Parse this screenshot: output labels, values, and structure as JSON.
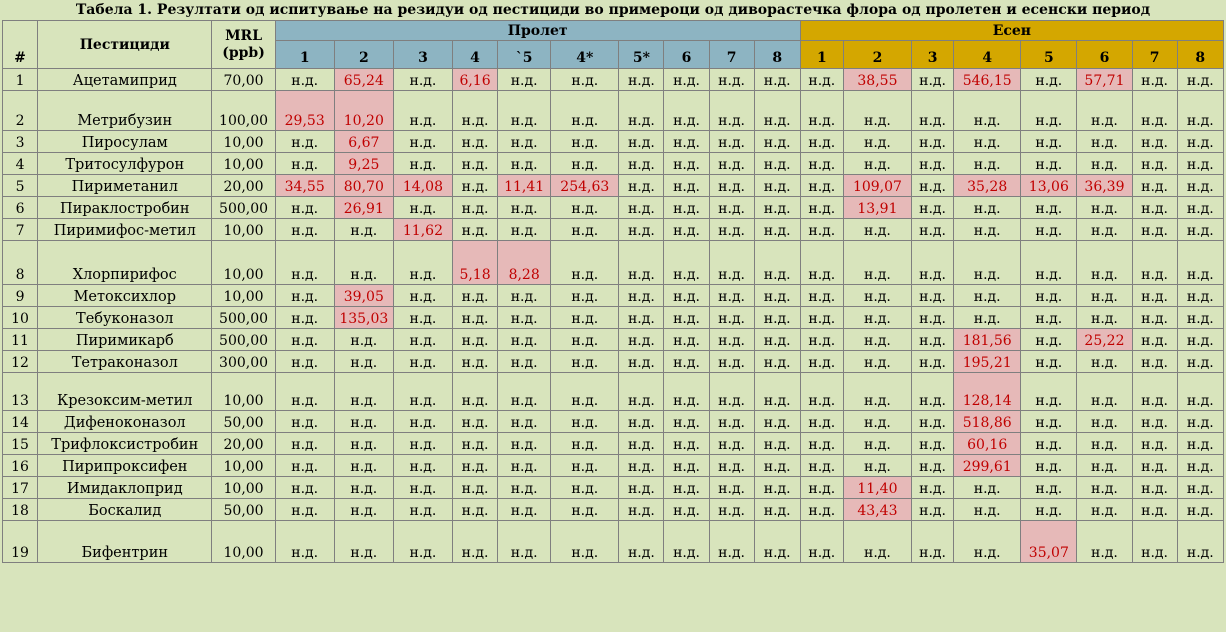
{
  "caption": "Табела 1. Резултати од испитување на резидуи од пестициди во примероци од диворастечка флора од пролетен и есенски период",
  "header": {
    "num": "#",
    "pesticide": "Пестициди",
    "mrl_line1": "MRL",
    "mrl_line2": "(ppb)",
    "spring": "Пролет",
    "autumn": "Есен",
    "spring_cols": [
      "1",
      "2",
      "3",
      "4",
      "`5",
      "4*",
      "5*",
      "6",
      "7",
      "8"
    ],
    "autumn_cols": [
      "1",
      "2",
      "3",
      "4",
      "5",
      "6",
      "7",
      "8"
    ]
  },
  "colors": {
    "background": "#d8e4bc",
    "spring_header": "#8db4c2",
    "autumn_header": "#d4a700",
    "highlight_bg": "#e6b9b8",
    "highlight_text": "#c00000"
  },
  "rows": [
    {
      "n": "1",
      "name": "Ацетамиприд",
      "mrl": "70,00",
      "spring": [
        "н.д.",
        "65,24",
        "н.д.",
        "6,16",
        "н.д.",
        "н.д.",
        "н.д.",
        "н.д.",
        "н.д.",
        "н.д."
      ],
      "autumn": [
        "н.д.",
        "38,55",
        "н.д.",
        "546,15",
        "н.д.",
        "57,71",
        "н.д.",
        "н.д."
      ]
    },
    {
      "n": "2",
      "name": "Метрибузин",
      "mrl": "100,00",
      "spring": [
        "29,53",
        "10,20",
        "н.д.",
        "н.д.",
        "н.д.",
        "н.д.",
        "н.д.",
        "н.д.",
        "н.д.",
        "н.д."
      ],
      "autumn": [
        "н.д.",
        "н.д.",
        "н.д.",
        "н.д.",
        "н.д.",
        "н.д.",
        "н.д.",
        "н.д."
      ]
    },
    {
      "n": "3",
      "name": "Пиросулам",
      "mrl": "10,00",
      "spring": [
        "н.д.",
        "6,67",
        "н.д.",
        "н.д.",
        "н.д.",
        "н.д.",
        "н.д.",
        "н.д.",
        "н.д.",
        "н.д."
      ],
      "autumn": [
        "н.д.",
        "н.д.",
        "н.д.",
        "н.д.",
        "н.д.",
        "н.д.",
        "н.д.",
        "н.д."
      ]
    },
    {
      "n": "4",
      "name": "Тритосулфурон",
      "mrl": "10,00",
      "spring": [
        "н.д.",
        "9,25",
        "н.д.",
        "н.д.",
        "н.д.",
        "н.д.",
        "н.д.",
        "н.д.",
        "н.д.",
        "н.д."
      ],
      "autumn": [
        "н.д.",
        "н.д.",
        "н.д.",
        "н.д.",
        "н.д.",
        "н.д.",
        "н.д.",
        "н.д."
      ]
    },
    {
      "n": "5",
      "name": "Пириметанил",
      "mrl": "20,00",
      "spring": [
        "34,55",
        "80,70",
        "14,08",
        "н.д.",
        "11,41",
        "254,63",
        "н.д.",
        "н.д.",
        "н.д.",
        "н.д."
      ],
      "autumn": [
        "н.д.",
        "109,07",
        "н.д.",
        "35,28",
        "13,06",
        "36,39",
        "н.д.",
        "н.д."
      ]
    },
    {
      "n": "6",
      "name": "Пираклостробин",
      "mrl": "500,00",
      "spring": [
        "н.д.",
        "26,91",
        "н.д.",
        "н.д.",
        "н.д.",
        "н.д.",
        "н.д.",
        "н.д.",
        "н.д.",
        "н.д."
      ],
      "autumn": [
        "н.д.",
        "13,91",
        "н.д.",
        "н.д.",
        "н.д.",
        "н.д.",
        "н.д.",
        "н.д."
      ]
    },
    {
      "n": "7",
      "name": "Пиримифос-метил",
      "mrl": "10,00",
      "spring": [
        "н.д.",
        "н.д.",
        "11,62",
        "н.д.",
        "н.д.",
        "н.д.",
        "н.д.",
        "н.д.",
        "н.д.",
        "н.д."
      ],
      "autumn": [
        "н.д.",
        "н.д.",
        "н.д.",
        "н.д.",
        "н.д.",
        "н.д.",
        "н.д.",
        "н.д."
      ]
    },
    {
      "n": "8",
      "name": "Хлорпирифос",
      "mrl": "10,00",
      "spring": [
        "н.д.",
        "н.д.",
        "н.д.",
        "5,18",
        "8,28",
        "н.д.",
        "н.д.",
        "н.д.",
        "н.д.",
        "н.д."
      ],
      "autumn": [
        "н.д.",
        "н.д.",
        "н.д.",
        "н.д.",
        "н.д.",
        "н.д.",
        "н.д.",
        "н.д."
      ]
    },
    {
      "n": "9",
      "name": "Метоксихлор",
      "mrl": "10,00",
      "spring": [
        "н.д.",
        "39,05",
        "н.д.",
        "н.д.",
        "н.д.",
        "н.д.",
        "н.д.",
        "н.д.",
        "н.д.",
        "н.д."
      ],
      "autumn": [
        "н.д.",
        "н.д.",
        "н.д.",
        "н.д.",
        "н.д.",
        "н.д.",
        "н.д.",
        "н.д."
      ]
    },
    {
      "n": "10",
      "name": "Тебуконазол",
      "mrl": "500,00",
      "spring": [
        "н.д.",
        "135,03",
        "н.д.",
        "н.д.",
        "н.д.",
        "н.д.",
        "н.д.",
        "н.д.",
        "н.д.",
        "н.д."
      ],
      "autumn": [
        "н.д.",
        "н.д.",
        "н.д.",
        "н.д.",
        "н.д.",
        "н.д.",
        "н.д.",
        "н.д."
      ]
    },
    {
      "n": "11",
      "name": "Пиримикарб",
      "mrl": "500,00",
      "spring": [
        "н.д.",
        "н.д.",
        "н.д.",
        "н.д.",
        "н.д.",
        "н.д.",
        "н.д.",
        "н.д.",
        "н.д.",
        "н.д."
      ],
      "autumn": [
        "н.д.",
        "н.д.",
        "н.д.",
        "181,56",
        "н.д.",
        "25,22",
        "н.д.",
        "н.д."
      ]
    },
    {
      "n": "12",
      "name": "Тетраконазол",
      "mrl": "300,00",
      "spring": [
        "н.д.",
        "н.д.",
        "н.д.",
        "н.д.",
        "н.д.",
        "н.д.",
        "н.д.",
        "н.д.",
        "н.д.",
        "н.д."
      ],
      "autumn": [
        "н.д.",
        "н.д.",
        "н.д.",
        "195,21",
        "н.д.",
        "н.д.",
        "н.д.",
        "н.д."
      ]
    },
    {
      "n": "13",
      "name": "Крезоксим-метил",
      "mrl": "10,00",
      "spring": [
        "н.д.",
        "н.д.",
        "н.д.",
        "н.д.",
        "н.д.",
        "н.д.",
        "н.д.",
        "н.д.",
        "н.д.",
        "н.д."
      ],
      "autumn": [
        "н.д.",
        "н.д.",
        "н.д.",
        "128,14",
        "н.д.",
        "н.д.",
        "н.д.",
        "н.д."
      ]
    },
    {
      "n": "14",
      "name": "Дифеноконазол",
      "mrl": "50,00",
      "spring": [
        "н.д.",
        "н.д.",
        "н.д.",
        "н.д.",
        "н.д.",
        "н.д.",
        "н.д.",
        "н.д.",
        "н.д.",
        "н.д."
      ],
      "autumn": [
        "н.д.",
        "н.д.",
        "н.д.",
        "518,86",
        "н.д.",
        "н.д.",
        "н.д.",
        "н.д."
      ]
    },
    {
      "n": "15",
      "name": "Трифлоксистробин",
      "mrl": "20,00",
      "spring": [
        "н.д.",
        "н.д.",
        "н.д.",
        "н.д.",
        "н.д.",
        "н.д.",
        "н.д.",
        "н.д.",
        "н.д.",
        "н.д."
      ],
      "autumn": [
        "н.д.",
        "н.д.",
        "н.д.",
        "60,16",
        "н.д.",
        "н.д.",
        "н.д.",
        "н.д."
      ]
    },
    {
      "n": "16",
      "name": "Пирипроксифен",
      "mrl": "10,00",
      "spring": [
        "н.д.",
        "н.д.",
        "н.д.",
        "н.д.",
        "н.д.",
        "н.д.",
        "н.д.",
        "н.д.",
        "н.д.",
        "н.д."
      ],
      "autumn": [
        "н.д.",
        "н.д.",
        "н.д.",
        "299,61",
        "н.д.",
        "н.д.",
        "н.д.",
        "н.д."
      ]
    },
    {
      "n": "17",
      "name": "Имидаклоприд",
      "mrl": "10,00",
      "spring": [
        "н.д.",
        "н.д.",
        "н.д.",
        "н.д.",
        "н.д.",
        "н.д.",
        "н.д.",
        "н.д.",
        "н.д.",
        "н.д."
      ],
      "autumn": [
        "н.д.",
        "11,40",
        "н.д.",
        "н.д.",
        "н.д.",
        "н.д.",
        "н.д.",
        "н.д."
      ]
    },
    {
      "n": "18",
      "name": "Боскалид",
      "mrl": "50,00",
      "spring": [
        "н.д.",
        "н.д.",
        "н.д.",
        "н.д.",
        "н.д.",
        "н.д.",
        "н.д.",
        "н.д.",
        "н.д.",
        "н.д."
      ],
      "autumn": [
        "н.д.",
        "43,43",
        "н.д.",
        "н.д.",
        "н.д.",
        "н.д.",
        "н.д.",
        "н.д."
      ]
    },
    {
      "n": "19",
      "name": "Бифентрин",
      "mrl": "10,00",
      "spring": [
        "н.д.",
        "н.д.",
        "н.д.",
        "н.д.",
        "н.д.",
        "н.д.",
        "н.д.",
        "н.д.",
        "н.д.",
        "н.д."
      ],
      "autumn": [
        "н.д.",
        "н.д.",
        "н.д.",
        "н.д.",
        "35,07",
        "н.д.",
        "н.д.",
        "н.д."
      ]
    }
  ]
}
